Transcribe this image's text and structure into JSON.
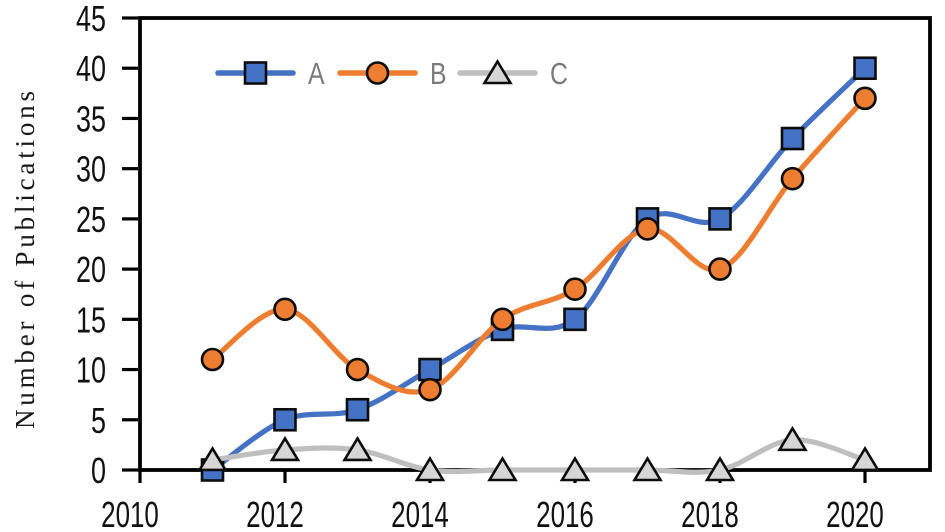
{
  "chart_data": {
    "type": "line",
    "title": "",
    "xlabel": "",
    "ylabel": "Number of Publications",
    "x": [
      2011,
      2012,
      2013,
      2014,
      2015,
      2016,
      2017,
      2018,
      2019,
      2020
    ],
    "series": [
      {
        "name": "A",
        "marker": "square",
        "line_color": "#4472C4",
        "marker_fill": "#4472C4",
        "values": [
          0,
          5,
          6,
          10,
          14,
          15,
          25,
          25,
          33,
          40
        ]
      },
      {
        "name": "B",
        "marker": "circle",
        "line_color": "#ED7D31",
        "marker_fill": "#ED7D31",
        "values": [
          11,
          16,
          10,
          8,
          15,
          18,
          24,
          20,
          29,
          37
        ]
      },
      {
        "name": "C",
        "marker": "triangle",
        "line_color": "#BFBFBF",
        "marker_fill": "#D6D6D6",
        "values": [
          1,
          2,
          2,
          0,
          0,
          0,
          0,
          0,
          3,
          1
        ]
      }
    ],
    "xlim": [
      2010,
      2020.9
    ],
    "ylim": [
      0,
      45
    ],
    "x_ticks": [
      2010,
      2012,
      2014,
      2016,
      2018,
      2020
    ],
    "y_ticks": [
      0,
      5,
      10,
      15,
      20,
      25,
      30,
      35,
      40,
      45
    ],
    "grid": false,
    "smooth_lines": true,
    "legend_position": "top-left-inside",
    "legend_text_color": "#7A7A7A",
    "axis_color": "#000000",
    "marker_outline_color": "#0D0D0D",
    "background_color": "#FFFFFF"
  }
}
